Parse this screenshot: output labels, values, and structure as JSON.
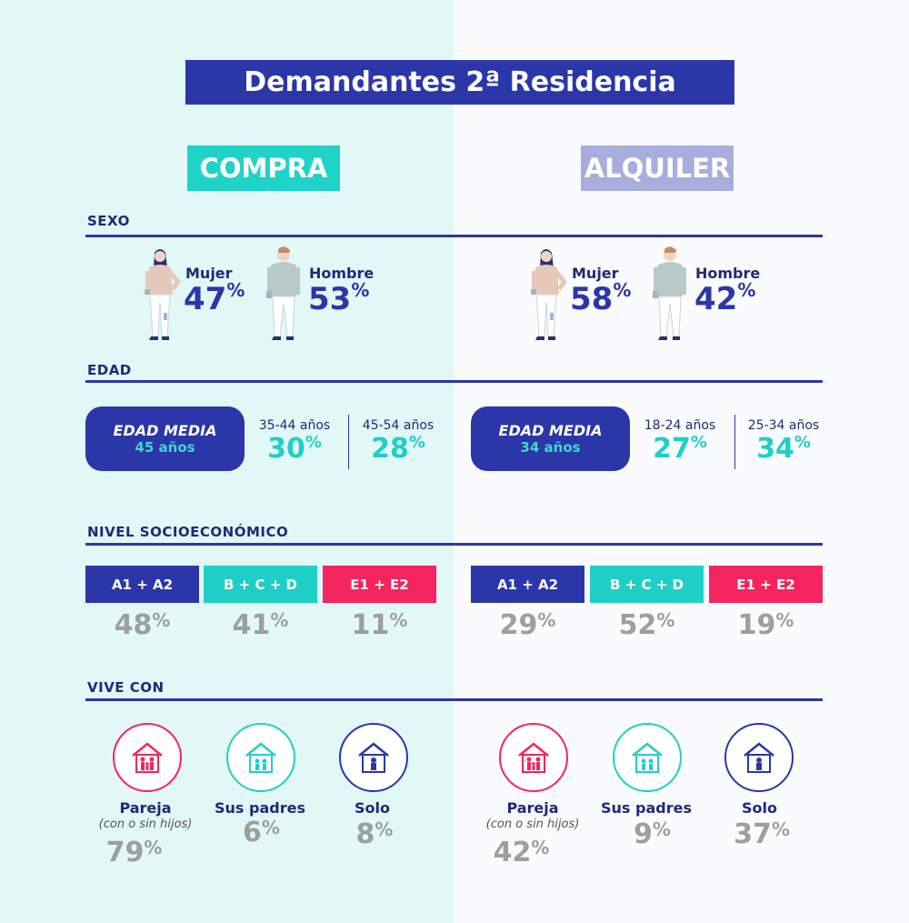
{
  "title": "Demandantes 2ª Residencia",
  "colors": {
    "navy": "#2b36a8",
    "teal": "#1fcfc7",
    "pink": "#f4245e",
    "lavender": "#a7addd",
    "gray": "#9e9e9e"
  },
  "sections": {
    "sexo": "SEXO",
    "edad": "EDAD",
    "nivel": "NIVEL SOCIOECONÓMICO",
    "vive": "VIVE CON"
  },
  "compra": {
    "tag": "COMPRA",
    "mujer": {
      "label": "Mujer",
      "pct": "47"
    },
    "hombre": {
      "label": "Hombre",
      "pct": "53"
    },
    "edad_media": {
      "label": "EDAD MEDIA",
      "value": "45 años"
    },
    "ages": [
      {
        "label": "35-44 años",
        "pct": "30"
      },
      {
        "label": "45-54 años",
        "pct": "28"
      }
    ],
    "nivel": [
      {
        "label": "A1 + A2",
        "pct": "48"
      },
      {
        "label": "B + C + D",
        "pct": "41"
      },
      {
        "label": "E1 + E2",
        "pct": "11"
      }
    ],
    "vive": [
      {
        "label": "Pareja",
        "sub": "(con o sin hijos)",
        "pct": "79"
      },
      {
        "label": "Sus padres",
        "sub": "",
        "pct": "6"
      },
      {
        "label": "Solo",
        "sub": "",
        "pct": "8"
      }
    ]
  },
  "alquiler": {
    "tag": "ALQUILER",
    "mujer": {
      "label": "Mujer",
      "pct": "58"
    },
    "hombre": {
      "label": "Hombre",
      "pct": "42"
    },
    "edad_media": {
      "label": "EDAD MEDIA",
      "value": "34 años"
    },
    "ages": [
      {
        "label": "18-24 años",
        "pct": "27"
      },
      {
        "label": "25-34 años",
        "pct": "34"
      }
    ],
    "nivel": [
      {
        "label": "A1 + A2",
        "pct": "29"
      },
      {
        "label": "B + C + D",
        "pct": "52"
      },
      {
        "label": "E1 + E2",
        "pct": "19"
      }
    ],
    "vive": [
      {
        "label": "Pareja",
        "sub": "(con o sin hijos)",
        "pct": "42"
      },
      {
        "label": "Sus padres",
        "sub": "",
        "pct": "9"
      },
      {
        "label": "Solo",
        "sub": "",
        "pct": "37"
      }
    ]
  },
  "percent_sign": "%"
}
